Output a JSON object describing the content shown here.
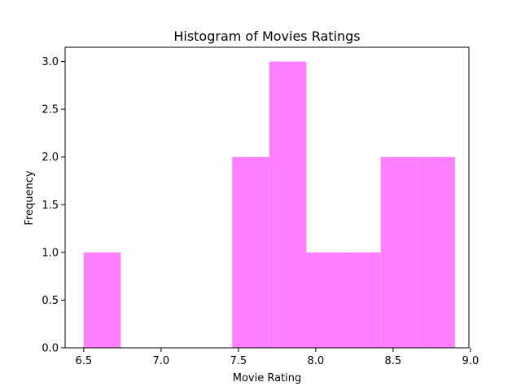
{
  "chart_data": {
    "type": "histogram",
    "title": "Histogram of Movies Ratings",
    "xlabel": "Movie Rating",
    "ylabel": "Frequency",
    "bar_color": "#ff80ff",
    "xlim": [
      6.38,
      8.99
    ],
    "ylim": [
      0,
      3.15
    ],
    "x_ticks": [
      "6.5",
      "7.0",
      "7.5",
      "8.0",
      "8.5",
      "9.0"
    ],
    "y_ticks": [
      "0.0",
      "0.5",
      "1.0",
      "1.5",
      "2.0",
      "2.5",
      "3.0"
    ],
    "bins": [
      {
        "start": 6.5,
        "end": 6.74,
        "count": 1
      },
      {
        "start": 6.74,
        "end": 6.98,
        "count": 0
      },
      {
        "start": 6.98,
        "end": 7.22,
        "count": 0
      },
      {
        "start": 7.22,
        "end": 7.46,
        "count": 0
      },
      {
        "start": 7.46,
        "end": 7.7,
        "count": 2
      },
      {
        "start": 7.7,
        "end": 7.94,
        "count": 3
      },
      {
        "start": 7.94,
        "end": 8.18,
        "count": 1
      },
      {
        "start": 8.18,
        "end": 8.42,
        "count": 1
      },
      {
        "start": 8.42,
        "end": 8.66,
        "count": 2
      },
      {
        "start": 8.66,
        "end": 8.9,
        "count": 2
      }
    ]
  }
}
